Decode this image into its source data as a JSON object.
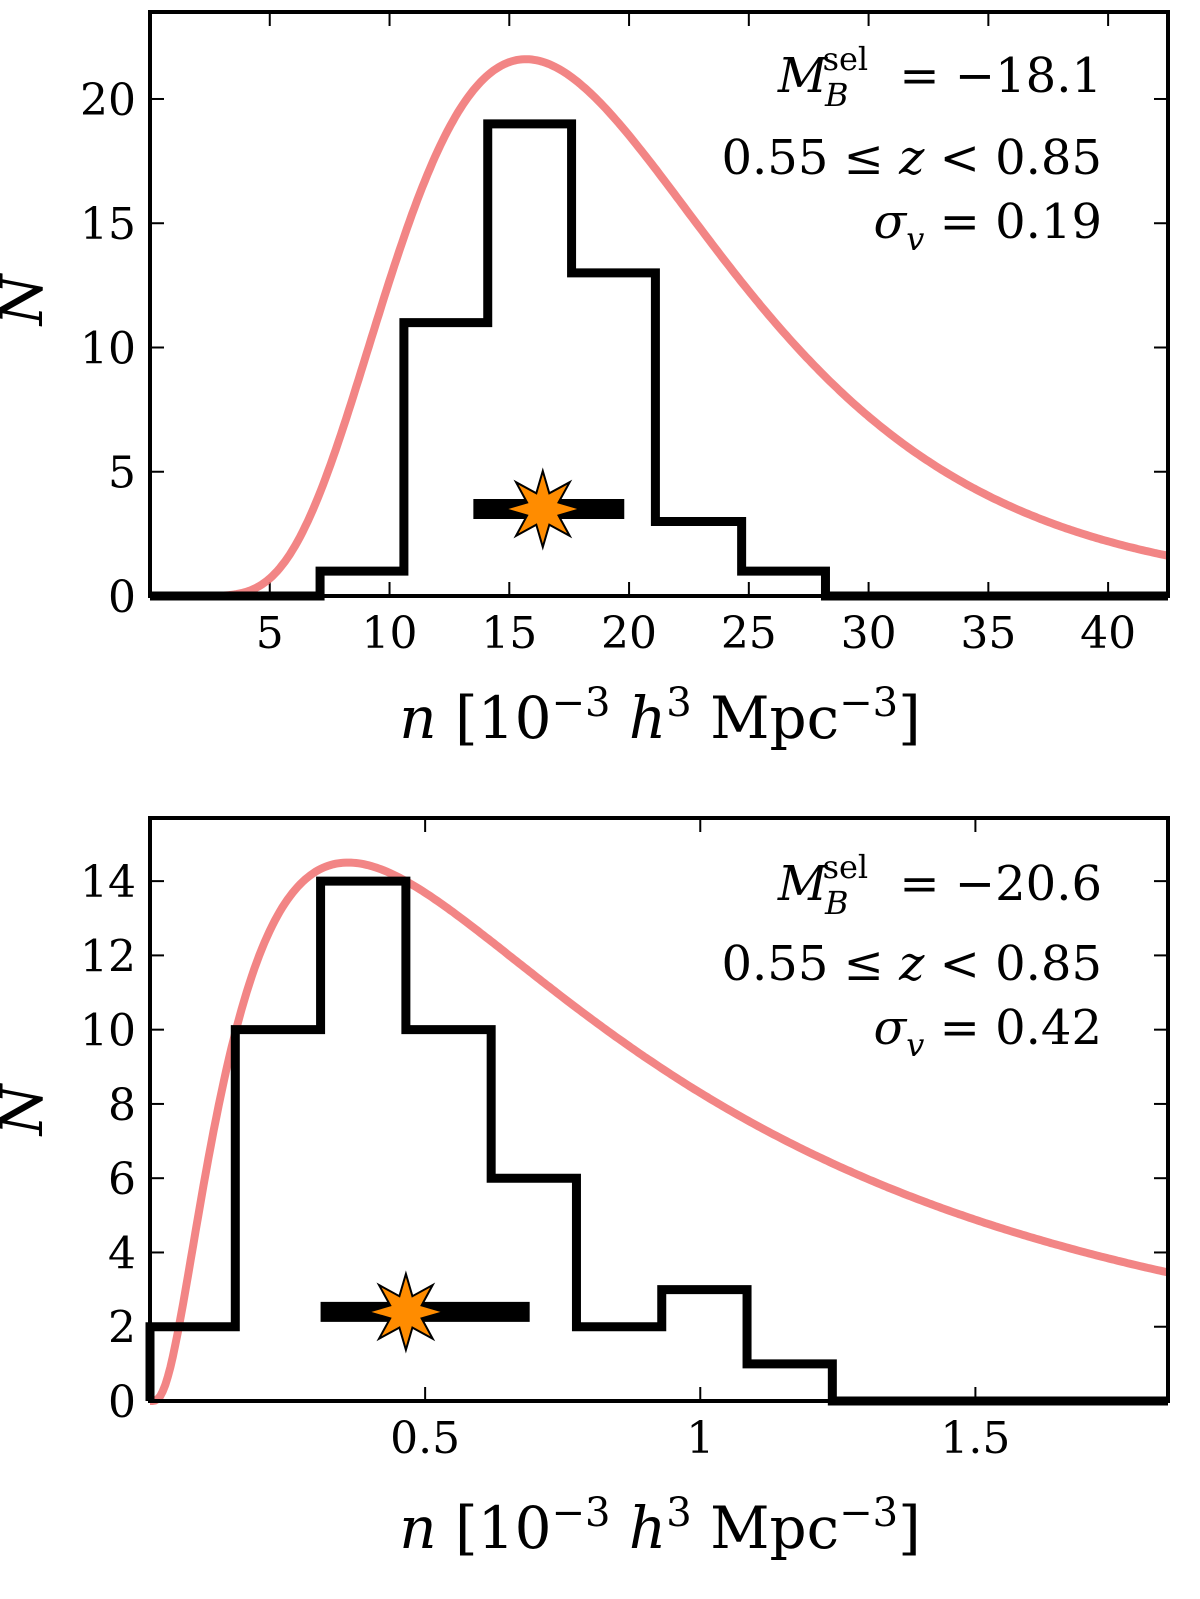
{
  "chart_data": [
    {
      "type": "bar",
      "title": "",
      "xlabel": "n [10^-3 h^3 Mpc^-3]",
      "ylabel": "N",
      "xlim": [
        0,
        42.5
      ],
      "ylim": [
        0,
        23.5
      ],
      "xticks": [
        5,
        10,
        15,
        20,
        25,
        30,
        35,
        40
      ],
      "yticks": [
        0,
        5,
        10,
        15,
        20
      ],
      "grid": false,
      "histogram": {
        "bin_edges": [
          7.1,
          10.6,
          14.1,
          17.6,
          21.1,
          24.7,
          28.2
        ],
        "counts": [
          1,
          11,
          19,
          13,
          3,
          1
        ]
      },
      "fit_curve": {
        "type": "lognormal",
        "peak_x": 15.7,
        "peak_y": 21.6,
        "sigma": 0.19,
        "color": "#f07070"
      },
      "marker": {
        "x": 16.4,
        "y": 3.5,
        "xerr_low": 13.5,
        "xerr_high": 19.8,
        "color": "#ff8c00"
      },
      "annotations": {
        "mag": {
          "sym": "M",
          "sub": "B",
          "sup": "sel",
          "rel": "= −18.1"
        },
        "z": {
          "left": "0.55 ≤ ",
          "var": "z",
          "right": " < 0.85"
        },
        "sigma": {
          "sym": "σ",
          "sub": "v",
          "rel": "= 0.19"
        }
      }
    },
    {
      "type": "bar",
      "title": "",
      "xlabel": "n [10^-3 h^3 Mpc^-3]",
      "ylabel": "N",
      "xlim": [
        0,
        1.85
      ],
      "ylim": [
        0,
        15.7
      ],
      "xticks": [
        0.5,
        1.0,
        1.5
      ],
      "yticks": [
        0,
        2,
        4,
        6,
        8,
        10,
        12,
        14
      ],
      "grid": false,
      "histogram": {
        "bin_edges": [
          0,
          0.155,
          0.31,
          0.465,
          0.62,
          0.775,
          0.93,
          1.085,
          1.24
        ],
        "counts": [
          2,
          10,
          14,
          10,
          6,
          2,
          3,
          1
        ]
      },
      "fit_curve": {
        "type": "lognormal",
        "peak_x": 0.36,
        "peak_y": 14.5,
        "sigma": 0.42,
        "color": "#f07070"
      },
      "marker": {
        "x": 0.465,
        "y": 2.4,
        "xerr_low": 0.31,
        "xerr_high": 0.69,
        "color": "#ff8c00"
      },
      "annotations": {
        "mag": {
          "sym": "M",
          "sub": "B",
          "sup": "sel",
          "rel": "= −20.6"
        },
        "z": {
          "left": "0.55 ≤ ",
          "var": "z",
          "right": " < 0.85"
        },
        "sigma": {
          "sym": "σ",
          "sub": "v",
          "rel": "= 0.42"
        }
      }
    }
  ],
  "axis_text": {
    "ylabel": "N",
    "xlabel_var": "n",
    "xlabel_base": "10",
    "xlabel_exp1": "−3",
    "xlabel_h": "h",
    "xlabel_exp2": "3",
    "xlabel_unit": "Mpc",
    "xlabel_exp3": "−3"
  }
}
